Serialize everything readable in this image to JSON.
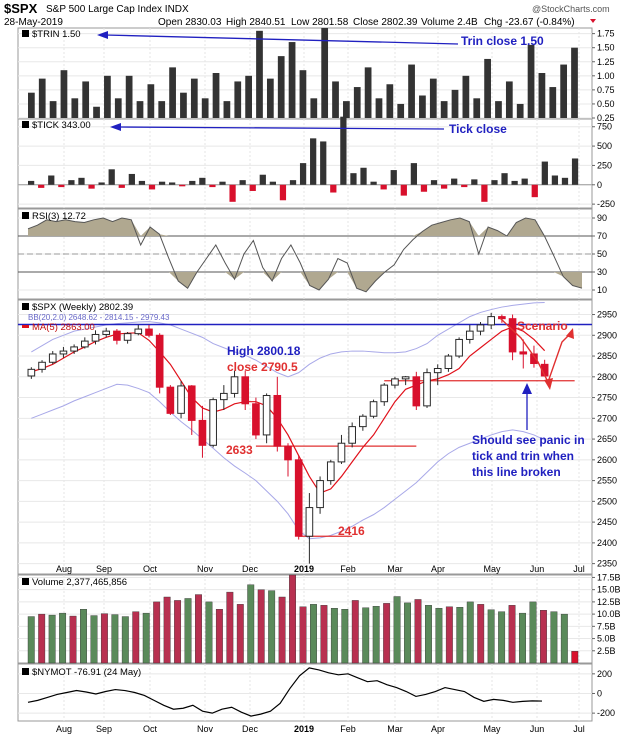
{
  "header": {
    "symbol": "$SPX",
    "name": "S&P 500 Large Cap Index INDX",
    "date": "28-May-2019",
    "open": "Open 2830.03",
    "high": "High 2840.51",
    "low": "Low 2801.58",
    "close": "Close 2802.39",
    "volume": "Volume 2.4B",
    "change": "Chg -23.67 (-0.84%)",
    "brand": "@StockCharts.com"
  },
  "panels": {
    "trin": {
      "label": "$TRIN 1.50"
    },
    "tick": {
      "label": "$TICK 343.00"
    },
    "rsi": {
      "label": "RSI(3) 12.72"
    },
    "price": {
      "label": "$SPX (Weekly) 2802.39",
      "bb": "BB(20,2.0) 2648.62 - 2814.15 - 2979.43",
      "ma": "MA(5) 2863.00"
    },
    "volume": {
      "label": "Volume 2,377,465,856"
    },
    "nymot": {
      "label": "$NYMOT -76.91 (24 May)"
    }
  },
  "annotations": {
    "trin_close": "Trin close 1.50",
    "tick_close": "Tick close",
    "high": "High 2800.18",
    "close": "close 2790.5",
    "level_2633": "2633",
    "level_2416": "2416",
    "scenario": "Scenario",
    "panic_1": "Should see panic in",
    "panic_2": "tick and trin when",
    "panic_3": "this line broken"
  },
  "x_labels": [
    "Aug",
    "Sep",
    "Oct",
    "Nov",
    "Dec",
    "2019",
    "Feb",
    "Mar",
    "Apr",
    "May",
    "Jun",
    "Jul"
  ],
  "colors": {
    "up": "#2a2a2a",
    "down": "#d8102c",
    "ma": "#e0101a",
    "bb": "#a8a8e8",
    "rsi_fill": "#b0a890",
    "vol_up": "#5a8a5a",
    "vol_down": "#b83050",
    "line_blue": "#2020c0",
    "line_red": "#e03030"
  },
  "chart_data": [
    {
      "type": "bar",
      "title": "$TRIN 1.50",
      "ylim": [
        0.25,
        1.85
      ],
      "yticks": [
        "1.75",
        "1.50",
        "1.25",
        "1.00",
        "0.75",
        "0.50",
        "0.25"
      ],
      "values": [
        0.7,
        0.95,
        0.55,
        1.1,
        0.6,
        0.9,
        0.45,
        1.0,
        0.6,
        1.0,
        0.55,
        0.85,
        0.55,
        1.15,
        0.7,
        0.95,
        0.6,
        1.05,
        0.55,
        0.9,
        1.0,
        1.8,
        0.95,
        1.35,
        1.6,
        1.1,
        0.6,
        1.85,
        0.9,
        0.55,
        0.8,
        1.15,
        0.6,
        0.85,
        0.5,
        1.2,
        0.65,
        0.95,
        0.55,
        0.75,
        1.0,
        0.6,
        1.3,
        0.55,
        0.9,
        0.5,
        1.55,
        1.05,
        0.8,
        1.2,
        1.5
      ]
    },
    {
      "type": "bar",
      "title": "$TICK 343.00",
      "ylim": [
        -300,
        850
      ],
      "yticks": [
        "750",
        "500",
        "250",
        "0",
        "-250"
      ],
      "values": [
        50,
        -40,
        120,
        -30,
        60,
        90,
        -50,
        30,
        200,
        -40,
        140,
        50,
        -60,
        40,
        30,
        -20,
        50,
        90,
        -30,
        40,
        -220,
        60,
        -80,
        130,
        40,
        -200,
        60,
        280,
        600,
        560,
        -100,
        880,
        150,
        220,
        40,
        -60,
        190,
        -140,
        280,
        -90,
        60,
        -50,
        80,
        -30,
        70,
        -220,
        60,
        150,
        50,
        80,
        -160,
        300,
        120,
        90,
        340
      ]
    },
    {
      "type": "area",
      "title": "RSI(3) 12.72",
      "ylim": [
        0,
        100
      ],
      "yticks": [
        "90",
        "70",
        "50",
        "30",
        "10"
      ],
      "reference_lines": [
        70,
        30
      ],
      "values": [
        78,
        82,
        88,
        86,
        88,
        86,
        85,
        88,
        90,
        86,
        90,
        88,
        60,
        80,
        72,
        45,
        20,
        12,
        30,
        45,
        60,
        40,
        22,
        50,
        65,
        35,
        20,
        45,
        60,
        40,
        15,
        10,
        22,
        45,
        40,
        12,
        8,
        20,
        30,
        38,
        55,
        66,
        75,
        82,
        85,
        88,
        90,
        86,
        50,
        80,
        76,
        70,
        85,
        90,
        88,
        70,
        48,
        25,
        15,
        12
      ]
    },
    {
      "type": "candlestick",
      "title": "$SPX (Weekly) 2802.39",
      "ylim": [
        2325,
        2985
      ],
      "yticks": [
        "2950",
        "2900",
        "2850",
        "2800",
        "2750",
        "2700",
        "2650",
        "2600",
        "2550",
        "2500",
        "2450",
        "2400",
        "2350"
      ],
      "candles": [
        [
          2802,
          2823,
          2795,
          2818
        ],
        [
          2818,
          2840,
          2810,
          2835
        ],
        [
          2835,
          2862,
          2830,
          2855
        ],
        [
          2855,
          2872,
          2846,
          2862
        ],
        [
          2862,
          2878,
          2855,
          2872
        ],
        [
          2872,
          2895,
          2868,
          2886
        ],
        [
          2886,
          2912,
          2878,
          2902
        ],
        [
          2902,
          2918,
          2895,
          2910
        ],
        [
          2910,
          2915,
          2878,
          2888
        ],
        [
          2888,
          2908,
          2880,
          2904
        ],
        [
          2904,
          2925,
          2900,
          2915
        ],
        [
          2915,
          2925,
          2895,
          2900
        ],
        [
          2900,
          2905,
          2760,
          2775
        ],
        [
          2775,
          2780,
          2708,
          2712
        ],
        [
          2712,
          2790,
          2700,
          2778
        ],
        [
          2778,
          2780,
          2660,
          2695
        ],
        [
          2695,
          2730,
          2605,
          2635
        ],
        [
          2635,
          2750,
          2630,
          2745
        ],
        [
          2745,
          2780,
          2720,
          2760
        ],
        [
          2760,
          2815,
          2750,
          2800
        ],
        [
          2800,
          2815,
          2720,
          2735
        ],
        [
          2735,
          2750,
          2650,
          2660
        ],
        [
          2660,
          2760,
          2640,
          2755
        ],
        [
          2755,
          2800,
          2620,
          2633
        ],
        [
          2633,
          2640,
          2560,
          2600
        ],
        [
          2600,
          2610,
          2408,
          2416
        ],
        [
          2416,
          2520,
          2350,
          2485
        ],
        [
          2485,
          2560,
          2470,
          2550
        ],
        [
          2550,
          2600,
          2540,
          2595
        ],
        [
          2595,
          2660,
          2590,
          2640
        ],
        [
          2640,
          2690,
          2630,
          2680
        ],
        [
          2680,
          2710,
          2670,
          2705
        ],
        [
          2705,
          2745,
          2700,
          2740
        ],
        [
          2740,
          2785,
          2730,
          2780
        ],
        [
          2780,
          2800,
          2772,
          2795
        ],
        [
          2795,
          2802,
          2780,
          2800
        ],
        [
          2800,
          2812,
          2720,
          2730
        ],
        [
          2730,
          2820,
          2725,
          2810
        ],
        [
          2810,
          2830,
          2780,
          2820
        ],
        [
          2820,
          2855,
          2812,
          2850
        ],
        [
          2850,
          2895,
          2845,
          2890
        ],
        [
          2890,
          2925,
          2880,
          2910
        ],
        [
          2910,
          2932,
          2900,
          2925
        ],
        [
          2925,
          2954,
          2915,
          2945
        ],
        [
          2945,
          2950,
          2930,
          2940
        ],
        [
          2940,
          2950,
          2840,
          2860
        ],
        [
          2860,
          2890,
          2820,
          2855
        ],
        [
          2855,
          2875,
          2822,
          2832
        ],
        [
          2830,
          2841,
          2802,
          2802
        ]
      ],
      "ma5": [
        2812,
        2820,
        2830,
        2845,
        2860,
        2872,
        2885,
        2895,
        2903,
        2905,
        2906,
        2888,
        2860,
        2830,
        2790,
        2750,
        2725,
        2715,
        2722,
        2735,
        2740,
        2740,
        2730,
        2700,
        2660,
        2610,
        2560,
        2520,
        2530,
        2560,
        2595,
        2630,
        2660,
        2700,
        2740,
        2770,
        2780,
        2790,
        2795,
        2805,
        2820,
        2850,
        2870,
        2890,
        2910,
        2920,
        2910,
        2890,
        2863
      ],
      "bb_upper": [
        2860,
        2875,
        2890,
        2900,
        2910,
        2915,
        2920,
        2925,
        2928,
        2930,
        2932,
        2933,
        2930,
        2925,
        2915,
        2905,
        2895,
        2880,
        2870,
        2860,
        2852,
        2840,
        2825,
        2810,
        2800,
        2810,
        2830,
        2845,
        2855,
        2860,
        2862,
        2862,
        2860,
        2858,
        2858,
        2860,
        2868,
        2880,
        2900,
        2915,
        2930,
        2945,
        2955,
        2962,
        2968,
        2972,
        2975,
        2978,
        2979
      ],
      "bb_lower": [
        2700,
        2710,
        2720,
        2730,
        2742,
        2752,
        2762,
        2772,
        2782,
        2780,
        2772,
        2762,
        2740,
        2715,
        2692,
        2672,
        2650,
        2628,
        2605,
        2585,
        2568,
        2550,
        2525,
        2500,
        2470,
        2430,
        2410,
        2412,
        2418,
        2428,
        2440,
        2455,
        2468,
        2485,
        2505,
        2525,
        2545,
        2570,
        2595,
        2615,
        2630,
        2640,
        2650,
        2660,
        2668,
        2672,
        2668,
        2660,
        2648
      ],
      "reference_lines": [
        {
          "value": 2926,
          "color": "blue"
        },
        {
          "value": 2790.5,
          "color": "red"
        },
        {
          "value": 2633,
          "color": "red"
        },
        {
          "value": 2416,
          "color": "red"
        }
      ]
    },
    {
      "type": "bar",
      "title": "Volume 2,377,465,856",
      "ylim": [
        0,
        18000000000
      ],
      "yticks": [
        "17.5B",
        "15.0B",
        "12.5B",
        "10.0B",
        "7.5B",
        "5.0B",
        "2.5B"
      ],
      "values": [
        9.5,
        10,
        9.8,
        10.2,
        9.6,
        11,
        9.7,
        10.1,
        9.9,
        9.5,
        10.5,
        10.2,
        12.5,
        13.5,
        12.8,
        13.2,
        14,
        12.5,
        11,
        14.5,
        12,
        16,
        15,
        14.8,
        13.5,
        18,
        11.5,
        12,
        11.8,
        11.2,
        11,
        12.8,
        11.3,
        11.6,
        12.2,
        13.6,
        12.3,
        13,
        11.8,
        11.2,
        11.5,
        11.4,
        12.5,
        12,
        10.9,
        10.5,
        11.8,
        10.2,
        12.5,
        10.8,
        10.5,
        10,
        2.4
      ]
    },
    {
      "type": "line",
      "title": "$NYMOT -76.91 (24 May)",
      "ylim": [
        -280,
        300
      ],
      "yticks": [
        "200",
        "0",
        "-200"
      ],
      "values": [
        -90,
        -70,
        -40,
        -10,
        10,
        30,
        15,
        -5,
        20,
        40,
        30,
        10,
        -20,
        -70,
        -120,
        -160,
        -150,
        -120,
        -180,
        -200,
        -160,
        -140,
        -190,
        -230,
        -210,
        -180,
        -100,
        50,
        180,
        260,
        240,
        210,
        190,
        200,
        160,
        120,
        130,
        90,
        60,
        20,
        -30,
        -10,
        20,
        60,
        40,
        20,
        -40,
        -80,
        -60,
        -70,
        -90,
        -80,
        -75,
        -77
      ]
    }
  ]
}
